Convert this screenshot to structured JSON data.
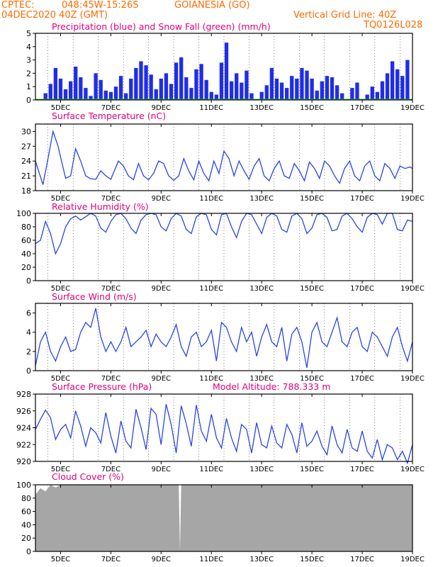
{
  "header": {
    "source": "CPTEC:",
    "coords": "048:45W-15:26S",
    "location": "GOIANESIA (GO)",
    "run": "04DEC2020 40Z (GMT)",
    "grid_note": "Vertical Grid Line: 40Z",
    "code": "TQ0126L028"
  },
  "colors": {
    "header": "#ff6a00",
    "titles": "#e0007a",
    "precip": "#1f2de8",
    "snow": "#2eb82e",
    "line": "#2846e6",
    "cloud": "#a6a6a6",
    "axis": "#000000"
  },
  "x_axis": {
    "ticks": [
      "5DEC",
      "7DEC",
      "9DEC",
      "11DEC",
      "13DEC",
      "15DEC",
      "17DEC",
      "19DEC"
    ]
  },
  "chart_data": [
    {
      "type": "bar",
      "title": "Precipitation (blue) and Snow Fall (green) (mm/h)",
      "ylim": [
        0,
        5
      ],
      "yticks": [
        "0",
        "1",
        "2",
        "3",
        "4",
        "5"
      ],
      "series": [
        {
          "name": "Precipitation",
          "x_days": [
            4.4,
            4.6,
            4.8,
            5.0,
            5.2,
            5.4,
            5.6,
            5.8,
            6.0,
            6.2,
            6.4,
            6.6,
            6.8,
            7.0,
            7.2,
            7.4,
            7.6,
            7.8,
            8.0,
            8.2,
            8.4,
            8.6,
            8.8,
            9.0,
            9.2,
            9.4,
            9.6,
            9.8,
            10.0,
            10.2,
            10.4,
            10.6,
            10.8,
            11.0,
            11.2,
            11.4,
            11.6,
            11.8,
            12.0,
            12.2,
            12.4,
            12.6,
            12.8,
            13.0,
            13.2,
            13.4,
            13.6,
            13.8,
            14.0,
            14.2,
            14.4,
            14.6,
            14.8,
            15.0,
            15.2,
            15.4,
            15.6,
            15.8,
            16.0,
            16.2,
            16.4,
            16.6,
            16.8,
            17.0,
            17.2,
            17.4,
            17.6,
            17.8,
            18.0,
            18.2,
            18.4,
            18.6,
            18.8
          ],
          "values": [
            0.5,
            1.2,
            2.4,
            1.6,
            0.8,
            1.4,
            2.5,
            1.7,
            0.9,
            0.3,
            2.0,
            1.5,
            0.7,
            0.6,
            1.0,
            1.8,
            0.5,
            1.6,
            2.4,
            2.9,
            2.6,
            1.9,
            0.8,
            1.6,
            2.0,
            1.2,
            2.8,
            3.2,
            1.7,
            0.9,
            2.3,
            2.7,
            1.5,
            0.6,
            0.4,
            2.8,
            4.3,
            1.4,
            2.0,
            1.3,
            2.2,
            0.5,
            0.0,
            0.6,
            1.1,
            2.4,
            1.6,
            1.3,
            0.9,
            1.8,
            1.6,
            2.4,
            2.2,
            1.6,
            0.7,
            1.4,
            1.8,
            1.7,
            1.1,
            0.5,
            0.0,
            0.9,
            1.3,
            0.0,
            0.4,
            1.0,
            0.6,
            1.4,
            2.0,
            2.9,
            2.3,
            1.8,
            3.0
          ]
        },
        {
          "name": "Snow Fall",
          "values": [
            0,
            0,
            0,
            0,
            0,
            0,
            0,
            0
          ]
        }
      ]
    },
    {
      "type": "line",
      "title": "Surface Temperature (nC)",
      "ylim": [
        18,
        31.5
      ],
      "yticks": [
        "18",
        "21",
        "24",
        "27",
        "30"
      ],
      "series": [
        {
          "name": "Surface Temperature",
          "x_days": [
            4.0,
            4.3,
            4.5,
            4.7,
            4.9,
            5.2,
            5.4,
            5.6,
            5.8,
            6.0,
            6.2,
            6.4,
            6.6,
            6.8,
            7.0,
            7.3,
            7.5,
            7.7,
            7.9,
            8.1,
            8.3,
            8.5,
            8.7,
            8.9,
            9.1,
            9.3,
            9.5,
            9.7,
            9.9,
            10.1,
            10.3,
            10.5,
            10.7,
            10.9,
            11.1,
            11.3,
            11.5,
            11.7,
            11.9,
            12.1,
            12.3,
            12.5,
            12.7,
            12.9,
            13.1,
            13.3,
            13.5,
            13.7,
            13.9,
            14.1,
            14.3,
            14.5,
            14.7,
            14.9,
            15.1,
            15.3,
            15.5,
            15.7,
            15.9,
            16.1,
            16.3,
            16.5,
            16.7,
            16.9,
            17.1,
            17.3,
            17.5,
            17.7,
            17.9,
            18.1,
            18.3,
            18.5,
            18.7,
            18.9,
            19.0
          ],
          "values": [
            24.0,
            19.2,
            24.5,
            30.0,
            27.0,
            20.5,
            21.0,
            26.5,
            24.0,
            21.0,
            20.4,
            20.3,
            22.0,
            21.0,
            20.3,
            24.0,
            23.0,
            21.0,
            20.2,
            23.5,
            21.0,
            20.2,
            21.5,
            24.0,
            23.5,
            21.0,
            20.1,
            21.0,
            24.5,
            22.0,
            20.2,
            24.0,
            21.5,
            20.0,
            24.0,
            21.5,
            26.0,
            24.5,
            21.0,
            24.0,
            22.0,
            20.3,
            23.0,
            24.5,
            21.0,
            20.0,
            22.5,
            24.0,
            21.0,
            20.5,
            23.5,
            22.0,
            20.0,
            23.8,
            22.5,
            20.5,
            24.0,
            23.0,
            21.0,
            19.5,
            22.5,
            24.0,
            21.0,
            20.0,
            23.0,
            24.0,
            21.0,
            20.0,
            23.5,
            22.5,
            20.5,
            23.0,
            22.5,
            22.8,
            22.5
          ]
        }
      ]
    },
    {
      "type": "line",
      "title": "Relative Humidity (%)",
      "ylim": [
        0,
        100
      ],
      "yticks": [
        "0",
        "20",
        "40",
        "60",
        "80",
        "100"
      ],
      "series": [
        {
          "name": "Relative Humidity",
          "x_days": [
            4.0,
            4.2,
            4.4,
            4.6,
            4.8,
            5.0,
            5.2,
            5.4,
            5.6,
            5.8,
            6.0,
            6.2,
            6.4,
            6.6,
            6.8,
            7.0,
            7.2,
            7.4,
            7.6,
            7.8,
            8.0,
            8.2,
            8.4,
            8.6,
            8.8,
            9.0,
            9.2,
            9.4,
            9.6,
            9.8,
            10.0,
            10.2,
            10.4,
            10.6,
            10.8,
            11.0,
            11.2,
            11.4,
            11.6,
            11.8,
            12.0,
            12.2,
            12.4,
            12.6,
            12.8,
            13.0,
            13.2,
            13.4,
            13.6,
            13.8,
            14.0,
            14.2,
            14.4,
            14.6,
            14.8,
            15.0,
            15.2,
            15.4,
            15.6,
            15.8,
            16.0,
            16.2,
            16.4,
            16.6,
            16.8,
            17.0,
            17.2,
            17.4,
            17.6,
            17.8,
            18.0,
            18.2,
            18.4,
            18.6,
            18.8,
            19.0
          ],
          "values": [
            55,
            60,
            88,
            70,
            40,
            55,
            80,
            92,
            96,
            90,
            95,
            100,
            96,
            78,
            72,
            88,
            98,
            100,
            92,
            78,
            70,
            90,
            98,
            100,
            98,
            80,
            74,
            92,
            100,
            96,
            76,
            70,
            95,
            100,
            98,
            76,
            68,
            98,
            100,
            80,
            64,
            88,
            100,
            98,
            84,
            70,
            94,
            100,
            96,
            76,
            72,
            96,
            100,
            92,
            70,
            78,
            98,
            100,
            94,
            74,
            76,
            96,
            100,
            92,
            80,
            72,
            94,
            100,
            98,
            84,
            100,
            100,
            76,
            74,
            90,
            88
          ]
        }
      ]
    },
    {
      "type": "line",
      "title": "Surface Wind (m/s)",
      "ylim": [
        0,
        7
      ],
      "yticks": [
        "0",
        "2",
        "4",
        "6"
      ],
      "series": [
        {
          "name": "Surface Wind",
          "x_days": [
            4.0,
            4.2,
            4.4,
            4.6,
            4.8,
            5.0,
            5.2,
            5.4,
            5.6,
            5.8,
            6.0,
            6.2,
            6.4,
            6.6,
            6.8,
            7.0,
            7.2,
            7.4,
            7.6,
            7.8,
            8.0,
            8.2,
            8.4,
            8.6,
            8.8,
            9.0,
            9.2,
            9.4,
            9.6,
            9.8,
            10.0,
            10.2,
            10.4,
            10.6,
            10.8,
            11.0,
            11.2,
            11.4,
            11.6,
            11.8,
            12.0,
            12.2,
            12.4,
            12.6,
            12.8,
            13.0,
            13.2,
            13.4,
            13.6,
            13.8,
            14.0,
            14.2,
            14.4,
            14.6,
            14.8,
            15.0,
            15.2,
            15.4,
            15.6,
            15.8,
            16.0,
            16.2,
            16.4,
            16.6,
            16.8,
            17.0,
            17.2,
            17.4,
            17.6,
            17.8,
            18.0,
            18.2,
            18.4,
            18.6,
            18.8,
            19.0
          ],
          "values": [
            0.5,
            3.0,
            4.0,
            2.0,
            1.0,
            2.5,
            3.5,
            2.0,
            2.2,
            4.0,
            5.0,
            4.5,
            6.5,
            3.5,
            2.0,
            3.0,
            2.0,
            3.0,
            4.5,
            2.5,
            3.0,
            3.5,
            4.2,
            2.5,
            3.8,
            3.0,
            2.5,
            3.5,
            4.8,
            2.5,
            1.5,
            3.5,
            4.0,
            2.5,
            3.0,
            4.2,
            1.0,
            5.0,
            4.5,
            3.0,
            2.0,
            4.5,
            3.0,
            4.0,
            1.5,
            3.5,
            4.8,
            3.0,
            2.5,
            4.5,
            1.0,
            3.8,
            4.5,
            3.0,
            0.3,
            4.0,
            5.0,
            3.0,
            2.5,
            4.0,
            5.5,
            3.0,
            2.5,
            4.0,
            4.5,
            2.5,
            2.0,
            4.0,
            3.5,
            2.5,
            1.5,
            3.5,
            4.5,
            2.5,
            1.0,
            3.0
          ]
        }
      ]
    },
    {
      "type": "line",
      "title": "Surface Pressure (hPa)",
      "annotation": "Model Altitude: 788.333 m",
      "ylim": [
        920,
        928
      ],
      "yticks": [
        "920",
        "922",
        "924",
        "926",
        "928"
      ],
      "series": [
        {
          "name": "Surface Pressure",
          "x_days": [
            4.0,
            4.2,
            4.4,
            4.6,
            4.8,
            5.0,
            5.2,
            5.4,
            5.6,
            5.8,
            6.0,
            6.2,
            6.4,
            6.6,
            6.8,
            7.0,
            7.2,
            7.4,
            7.6,
            7.8,
            8.0,
            8.2,
            8.4,
            8.6,
            8.8,
            9.0,
            9.2,
            9.4,
            9.6,
            9.8,
            10.0,
            10.2,
            10.4,
            10.6,
            10.8,
            11.0,
            11.2,
            11.4,
            11.6,
            11.8,
            12.0,
            12.2,
            12.4,
            12.6,
            12.8,
            13.0,
            13.2,
            13.4,
            13.6,
            13.8,
            14.0,
            14.2,
            14.4,
            14.6,
            14.8,
            15.0,
            15.2,
            15.4,
            15.6,
            15.8,
            16.0,
            16.2,
            16.4,
            16.6,
            16.8,
            17.0,
            17.2,
            17.4,
            17.6,
            17.8,
            18.0,
            18.2,
            18.4,
            18.6,
            18.8,
            19.0
          ],
          "values": [
            923.8,
            925.0,
            926.1,
            925.2,
            922.6,
            923.8,
            924.4,
            922.8,
            926.0,
            924.2,
            921.8,
            924.0,
            923.4,
            922.2,
            925.8,
            923.0,
            921.0,
            924.8,
            922.4,
            921.6,
            926.2,
            924.0,
            921.4,
            926.3,
            925.6,
            922.0,
            926.8,
            924.4,
            921.0,
            926.6,
            924.5,
            921.8,
            926.7,
            923.6,
            922.4,
            925.6,
            922.8,
            921.6,
            925.1,
            922.8,
            921.2,
            924.4,
            923.8,
            921.0,
            924.6,
            922.0,
            921.6,
            924.2,
            922.2,
            921.6,
            924.4,
            923.2,
            921.0,
            924.6,
            921.8,
            922.4,
            923.6,
            921.8,
            920.8,
            924.2,
            922.0,
            921.0,
            923.8,
            921.6,
            921.2,
            923.6,
            921.2,
            920.4,
            922.6,
            920.2,
            922.0,
            921.6,
            920.2,
            921.2,
            919.8,
            922.0
          ]
        }
      ]
    },
    {
      "type": "area",
      "title": "Cloud Cover (%)",
      "ylim": [
        0,
        100
      ],
      "yticks": [
        "0",
        "20",
        "40",
        "60",
        "80",
        "100"
      ],
      "series": [
        {
          "name": "Cloud Cover",
          "x_days": [
            4.0,
            4.2,
            4.4,
            4.6,
            4.8,
            5.0,
            5.5,
            6.0,
            7.0,
            8.0,
            9.0,
            9.7,
            9.75,
            9.8,
            10.0,
            11.0,
            12.0,
            13.0,
            14.0,
            15.0,
            16.0,
            17.0,
            18.0,
            19.0
          ],
          "values": [
            85,
            95,
            90,
            100,
            96,
            100,
            100,
            100,
            100,
            100,
            100,
            100,
            0,
            100,
            100,
            100,
            100,
            100,
            100,
            100,
            100,
            100,
            100,
            100
          ]
        }
      ]
    }
  ]
}
